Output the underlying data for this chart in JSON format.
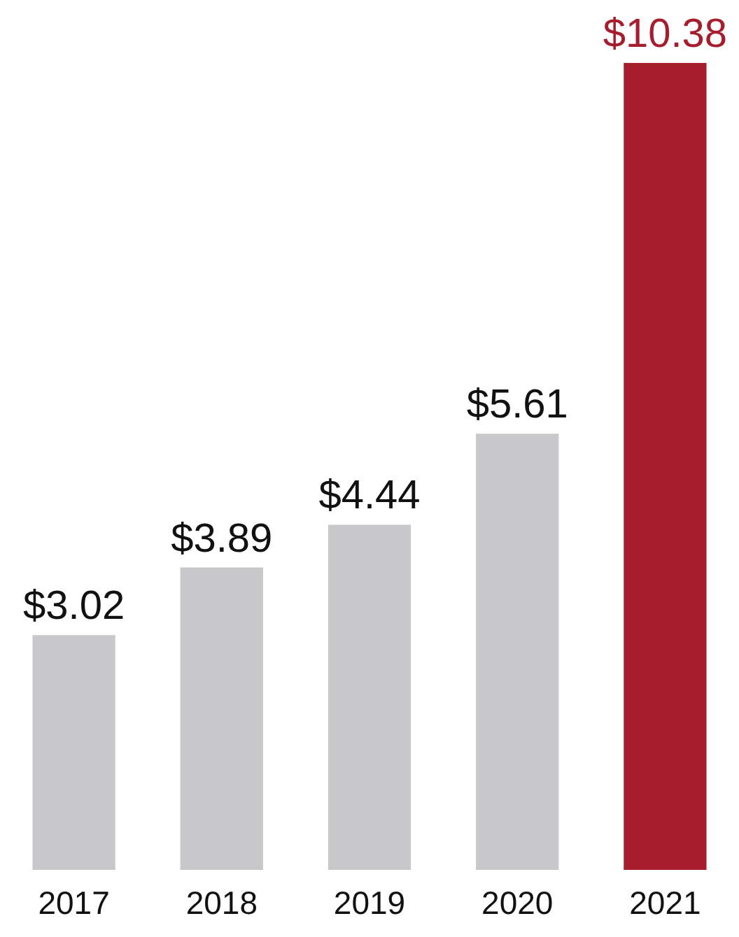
{
  "chart_data": {
    "type": "bar",
    "categories": [
      "2017",
      "2018",
      "2019",
      "2020",
      "2021"
    ],
    "values": [
      3.02,
      3.89,
      4.44,
      5.61,
      10.38
    ],
    "colors": [
      "#c8c8ca",
      "#c8c8ca",
      "#c8c8ca",
      "#c8c8ca",
      "#a61e2d"
    ],
    "value_labels": [
      "$3.02",
      "$3.89",
      "$4.44",
      "$5.61",
      "$10.38"
    ]
  }
}
